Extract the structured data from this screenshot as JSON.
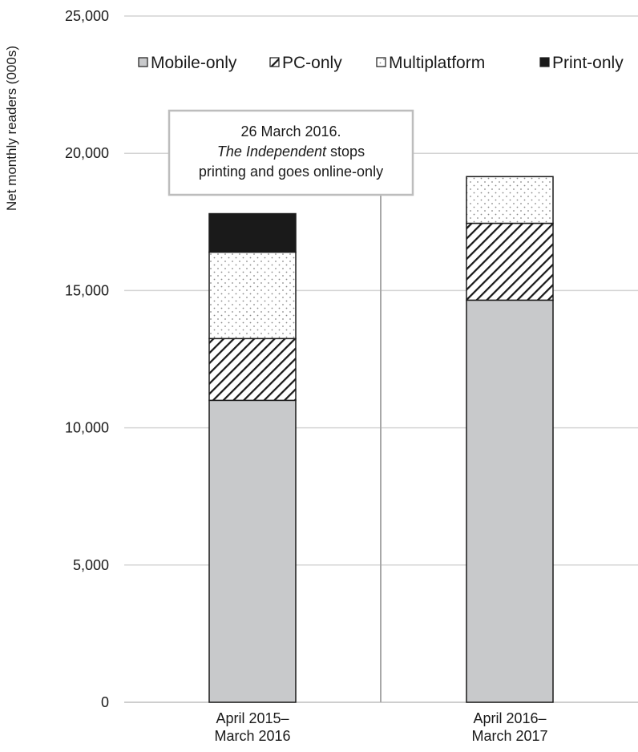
{
  "chart_data": {
    "type": "bar",
    "stacked": true,
    "categories": [
      [
        "April 2015–",
        "March 2016"
      ],
      [
        "April 2016–",
        "March 2017"
      ]
    ],
    "series": [
      {
        "name": "Mobile-only",
        "values": [
          11000,
          14650
        ],
        "fill": "#c8c9cb",
        "pattern": "solid"
      },
      {
        "name": "PC-only",
        "values": [
          2250,
          2800
        ],
        "fill": "#ffffff",
        "pattern": "diagonal-hatch"
      },
      {
        "name": "Multiplatform",
        "values": [
          3150,
          1700
        ],
        "fill": "#ffffff",
        "pattern": "dots"
      },
      {
        "name": "Print-only",
        "values": [
          1400,
          0
        ],
        "fill": "#1a1a1a",
        "pattern": "solid"
      }
    ],
    "ylabel": "Net monthly readers (000s)",
    "xlabel": "",
    "title": "",
    "ylim": [
      0,
      25000
    ],
    "yticks": [
      0,
      5000,
      10000,
      15000,
      20000,
      25000
    ],
    "ytick_labels": [
      "0",
      "5,000",
      "10,000",
      "15,000",
      "20,000",
      "25,000"
    ],
    "grid": true,
    "legend_position": "top",
    "annotation": {
      "lines": [
        {
          "text": "26 March 2016.",
          "italic_prefix": ""
        },
        {
          "italic_prefix": "The Independent",
          "text": " stops"
        },
        {
          "text": "printing and goes online-only",
          "italic_prefix": ""
        }
      ]
    }
  }
}
